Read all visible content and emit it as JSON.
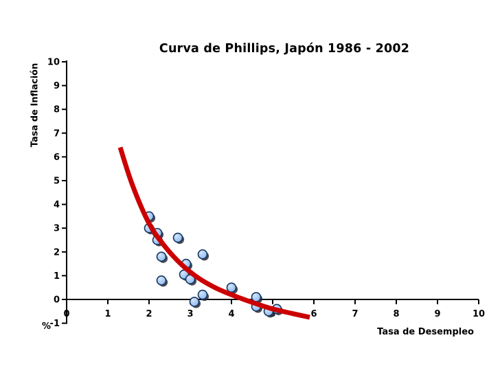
{
  "chart_data": {
    "type": "scatter",
    "title": "Curva de Phillips, Japón 1986 - 2002",
    "xlabel": "Tasa de Desempleo",
    "ylabel": "Tasa de Inflación",
    "unit_label": "%",
    "xlim": [
      0,
      10
    ],
    "ylim": [
      -1,
      10
    ],
    "x_ticks": [
      0,
      1,
      2,
      3,
      4,
      5,
      6,
      7,
      8,
      9,
      10
    ],
    "y_ticks": [
      -1,
      0,
      1,
      2,
      3,
      4,
      5,
      6,
      7,
      8,
      9,
      10
    ],
    "grid": false,
    "legend": false,
    "series": [
      {
        "name": "observaciones-anuales",
        "type": "scatter",
        "points": [
          [
            2.0,
            3.5
          ],
          [
            2.0,
            3.0
          ],
          [
            2.2,
            2.8
          ],
          [
            2.2,
            2.5
          ],
          [
            2.7,
            2.6
          ],
          [
            2.3,
            1.8
          ],
          [
            3.3,
            1.9
          ],
          [
            2.9,
            1.5
          ],
          [
            2.85,
            1.05
          ],
          [
            3.0,
            0.85
          ],
          [
            2.3,
            0.8
          ],
          [
            4.0,
            0.5
          ],
          [
            3.3,
            0.2
          ],
          [
            3.1,
            -0.1
          ],
          [
            4.6,
            0.1
          ],
          [
            4.6,
            -0.3
          ],
          [
            4.9,
            -0.5
          ],
          [
            5.1,
            -0.4
          ]
        ]
      },
      {
        "name": "curva-ajustada",
        "type": "line",
        "points": [
          [
            1.3,
            6.4
          ],
          [
            1.6,
            4.8
          ],
          [
            2.0,
            3.2
          ],
          [
            2.4,
            2.2
          ],
          [
            2.8,
            1.45
          ],
          [
            3.2,
            0.9
          ],
          [
            3.6,
            0.5
          ],
          [
            4.0,
            0.2
          ],
          [
            4.5,
            -0.12
          ],
          [
            5.0,
            -0.4
          ],
          [
            5.5,
            -0.6
          ],
          [
            5.9,
            -0.75
          ]
        ]
      }
    ],
    "colors": {
      "curve": "#CC0000",
      "marker_fill": "#A8CBF4",
      "marker_fill_light": "#D6E5FB",
      "marker_fill_dark": "#8FB9EF",
      "marker_stroke": "#16365C",
      "marker_shadow": "#2B2B36",
      "axis": "#000000",
      "text": "#000000",
      "background": "#FFFFFF"
    }
  }
}
